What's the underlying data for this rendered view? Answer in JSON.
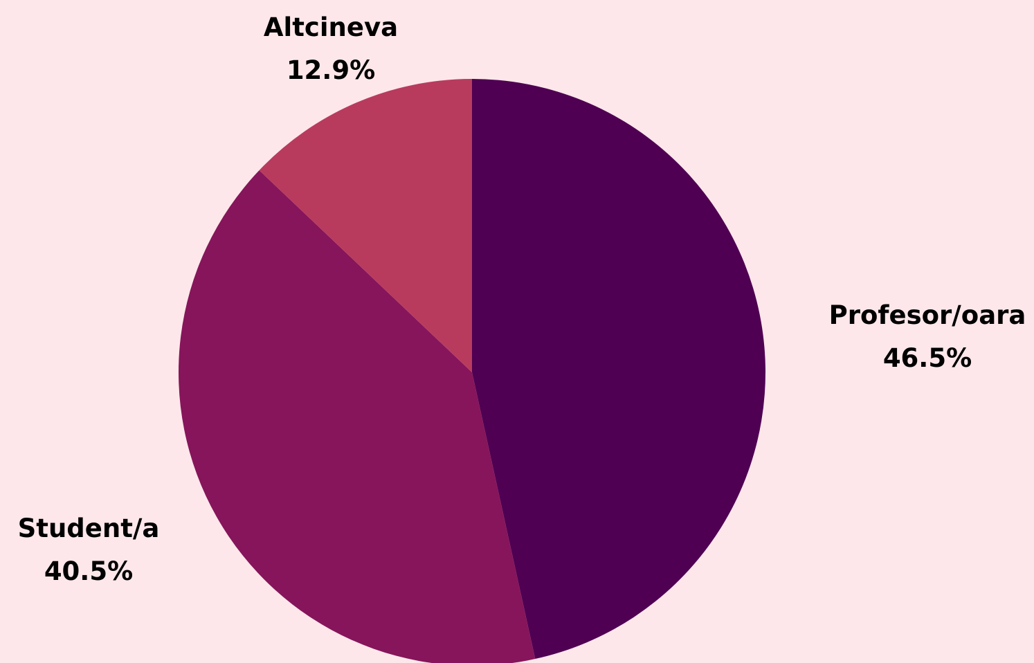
{
  "chart_data": {
    "type": "pie",
    "start_angle_deg": 0,
    "direction": "clockwise",
    "slices": [
      {
        "label": "Profesor/oara",
        "value": 46.5,
        "value_label": "46.5%",
        "color": "#4f0052"
      },
      {
        "label": "Student/a",
        "value": 40.5,
        "value_label": "40.5%",
        "color": "#86155b"
      },
      {
        "label": "Altcineva",
        "value": 12.9,
        "value_label": "12.9%",
        "color": "#b83b5e"
      }
    ]
  },
  "colors": {
    "background": "#fde7ea"
  }
}
